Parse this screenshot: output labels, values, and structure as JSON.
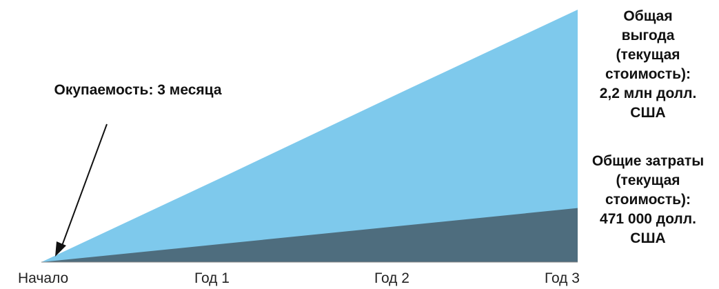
{
  "chart_data": {
    "type": "area",
    "x": [
      "Начало",
      "Год 1",
      "Год 2",
      "Год 3"
    ],
    "series": [
      {
        "name": "Общая выгода (текущая стоимость)",
        "values": [
          0,
          0.73,
          1.47,
          2.2
        ],
        "color": "#7ec9ec"
      },
      {
        "name": "Общие затраты (текущая стоимость)",
        "values": [
          0,
          0.157,
          0.314,
          0.471
        ],
        "color": "#4e6d7e"
      }
    ],
    "ylim": [
      0,
      2.2
    ],
    "annotations": {
      "payback": "Окупаемость: 3 месяца",
      "benefit_lines": [
        "Общая",
        "выгода",
        "(текущая",
        "стоимость):",
        "2,2 млн долл.",
        "США"
      ],
      "cost_lines": [
        "Общие затраты",
        "(текущая",
        "стоимость):",
        "471 000 долл.",
        "США"
      ]
    }
  }
}
